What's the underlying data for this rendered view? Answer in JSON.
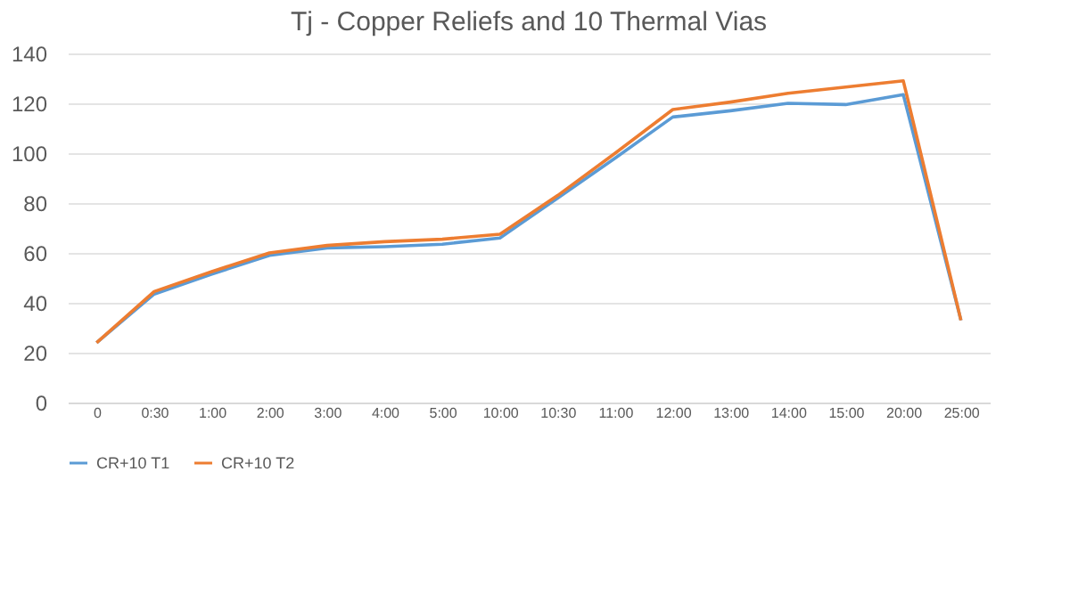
{
  "chart_data": {
    "type": "line",
    "title": "Tj - Copper Reliefs and 10 Thermal Vias",
    "categories": [
      "0",
      "0:30",
      "1:00",
      "2:00",
      "3:00",
      "4:00",
      "5:00",
      "10:00",
      "10:30",
      "11:00",
      "12:00",
      "13:00",
      "14:00",
      "15:00",
      "20:00",
      "25:00"
    ],
    "series": [
      {
        "name": "CR+10 T1",
        "color": "#5b9bd5",
        "values": [
          24,
          43.5,
          51.5,
          59,
          62,
          62.5,
          63.5,
          66,
          82,
          98,
          114.5,
          117,
          120,
          119.5,
          123.5,
          33
        ]
      },
      {
        "name": "CR+10 T2",
        "color": "#ed7d31",
        "values": [
          24,
          44.5,
          52.5,
          60,
          63,
          64.5,
          65.5,
          67.5,
          83,
          100,
          117.5,
          120.5,
          124,
          126.5,
          129,
          33
        ]
      }
    ],
    "ylim": [
      0,
      140
    ],
    "yticks": [
      0,
      20,
      40,
      60,
      80,
      100,
      120,
      140
    ],
    "grid": "y",
    "legend": "bottom",
    "marker": "none",
    "line_style": "solid"
  }
}
